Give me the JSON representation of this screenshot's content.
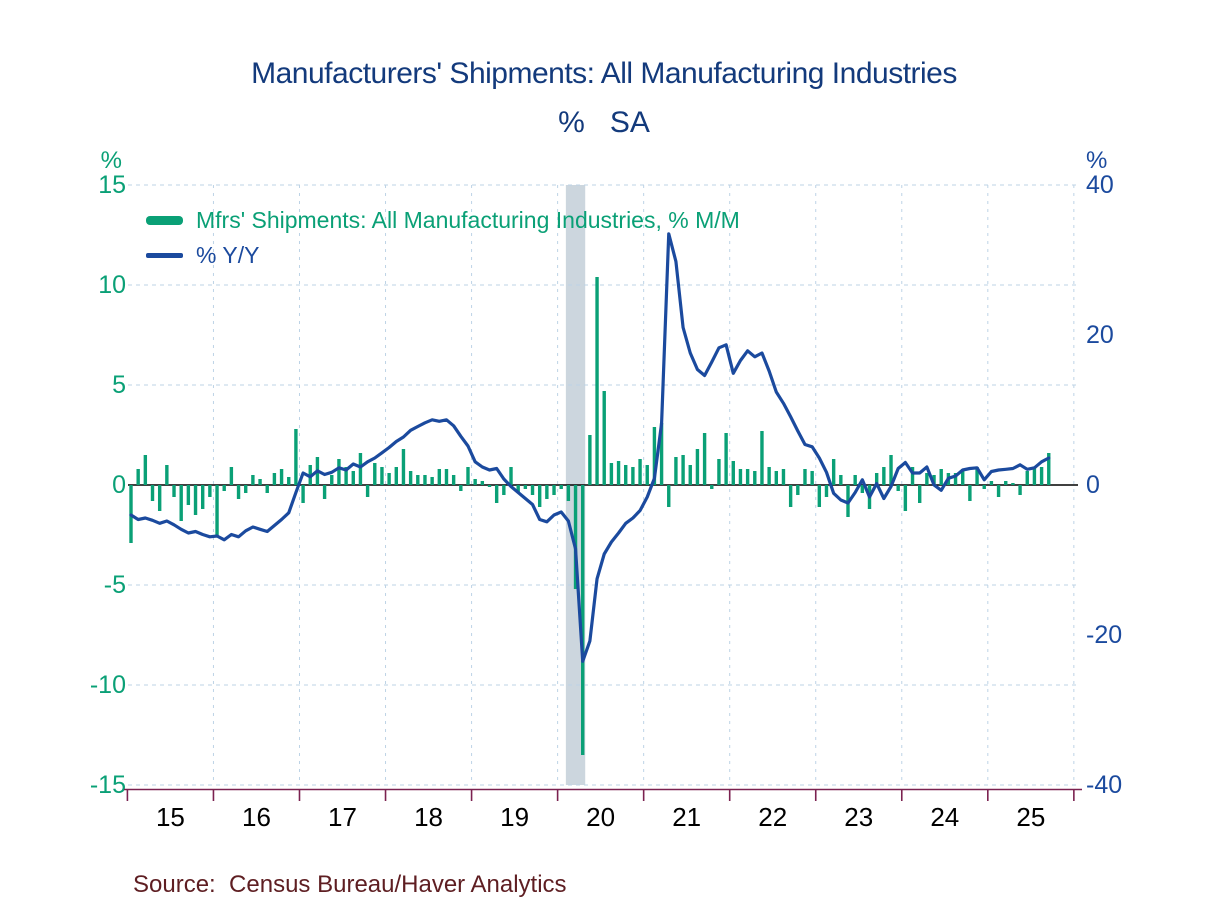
{
  "title": "Manufacturers' Shipments: All Manufacturing Industries",
  "subtitle": "%   SA",
  "source": {
    "label": "Source:",
    "text": "Census Bureau/Haver Analytics",
    "full": "Source:  Census Bureau/Haver Analytics"
  },
  "colors": {
    "bars_green": "#0aa076",
    "line_blue": "#1b4a9e",
    "title_navy": "#133a7c",
    "source_maroon": "#5e1e22",
    "x_axis_maroon": "#7b2150",
    "gridline": "#bdd3e6",
    "recession_band": "#ccd6de",
    "x_labels": "#000000",
    "zero_line": "#000000",
    "background": "#ffffff"
  },
  "legend": {
    "items": [
      {
        "label": "Mfrs' Shipments: All Manufacturing Industries, % M/M",
        "swatch": "thick-bar",
        "color": "#0aa076"
      },
      {
        "label": "% Y/Y",
        "swatch": "thin-line",
        "color": "#1b4a9e"
      }
    ]
  },
  "left_axis": {
    "unit": "%",
    "ticks": [
      15,
      10,
      5,
      0,
      -5,
      -10,
      -15
    ],
    "min": -15,
    "max": 15,
    "color": "#0aa076"
  },
  "right_axis": {
    "unit": "%",
    "ticks": [
      40,
      20,
      0,
      -20,
      -40
    ],
    "min": -40,
    "max": 40,
    "color": "#1b4a9e"
  },
  "x_axis": {
    "year_labels": [
      "15",
      "16",
      "17",
      "18",
      "19",
      "20",
      "21",
      "22",
      "23",
      "24",
      "25"
    ],
    "color": "#000000"
  },
  "recession_band": {
    "start": "2020-02",
    "end": "2020-04",
    "start_index": 61,
    "end_index": 63
  },
  "chart_data": {
    "type": "bar+line",
    "title": "Manufacturers' Shipments: All Manufacturing Industries",
    "subtitle": "%   SA",
    "start_month": "2015-01",
    "end_month": "2025-09",
    "months_per_year_tick": 12,
    "grid": "dashed horizontal at left ticks and vertical at January boundaries",
    "legend_position": "top-left inside plot",
    "series": [
      {
        "name": "Mfrs' Shipments: All Manufacturing Industries, % M/M",
        "type": "bar",
        "axis": "left",
        "axis_range": [
          -15,
          15
        ],
        "color": "#0aa076",
        "values": [
          -2.9,
          0.8,
          1.5,
          -0.8,
          -1.3,
          1.0,
          -0.6,
          -1.8,
          -1.0,
          -1.5,
          -1.2,
          -0.6,
          -2.6,
          -0.3,
          0.9,
          -0.7,
          -0.4,
          0.5,
          0.3,
          -0.4,
          0.6,
          0.8,
          0.4,
          2.8,
          -0.9,
          1.0,
          1.4,
          -0.7,
          0.5,
          1.3,
          0.9,
          0.7,
          1.6,
          -0.6,
          1.1,
          0.9,
          0.6,
          0.9,
          1.8,
          0.7,
          0.5,
          0.5,
          0.4,
          0.8,
          0.8,
          0.5,
          -0.3,
          0.9,
          0.3,
          0.2,
          -0.1,
          -0.9,
          -0.5,
          0.9,
          -0.4,
          -0.2,
          -0.5,
          -1.1,
          -0.7,
          -0.5,
          -0.2,
          -0.8,
          -5.2,
          -13.5,
          2.5,
          10.4,
          4.7,
          1.1,
          1.2,
          1.0,
          0.9,
          1.3,
          1.0,
          2.9,
          3.1,
          -1.1,
          1.4,
          1.5,
          1.0,
          1.8,
          2.6,
          -0.2,
          1.3,
          2.6,
          1.2,
          0.8,
          0.8,
          0.7,
          2.7,
          0.9,
          0.7,
          0.8,
          -1.1,
          -0.5,
          0.8,
          0.7,
          -1.1,
          -0.6,
          1.3,
          0.5,
          -1.6,
          0.5,
          -0.4,
          -1.2,
          0.6,
          0.9,
          1.5,
          -0.3,
          -1.3,
          0.9,
          -0.9,
          0.6,
          0.5,
          0.8,
          0.6,
          0.6,
          0.8,
          -0.8,
          0.9,
          -0.2,
          0.2,
          -0.6,
          0.2,
          0.1,
          -0.5,
          0.7,
          0.9,
          0.9,
          1.6
        ]
      },
      {
        "name": "% Y/Y",
        "type": "line",
        "axis": "right",
        "axis_range": [
          -40,
          40
        ],
        "color": "#1b4a9e",
        "values": [
          -4.0,
          -4.6,
          -4.4,
          -4.7,
          -5.1,
          -4.8,
          -5.3,
          -5.9,
          -6.4,
          -6.2,
          -6.6,
          -6.9,
          -6.8,
          -7.3,
          -6.6,
          -6.9,
          -6.1,
          -5.6,
          -5.9,
          -6.2,
          -5.4,
          -4.6,
          -3.7,
          -1.0,
          1.6,
          1.1,
          1.9,
          1.4,
          1.7,
          2.3,
          2.0,
          2.8,
          2.4,
          3.1,
          3.6,
          4.3,
          5.0,
          5.8,
          6.4,
          7.3,
          7.8,
          8.3,
          8.7,
          8.5,
          8.7,
          7.9,
          6.5,
          5.2,
          3.1,
          2.4,
          2.0,
          2.2,
          0.8,
          -0.2,
          -1.0,
          -1.8,
          -2.6,
          -4.6,
          -4.9,
          -4.0,
          -3.6,
          -4.8,
          -8.5,
          -23.5,
          -20.8,
          -12.5,
          -9.2,
          -7.6,
          -6.4,
          -5.1,
          -4.4,
          -3.4,
          -1.6,
          0.9,
          8.2,
          33.5,
          29.8,
          21.0,
          17.6,
          15.4,
          14.6,
          16.4,
          18.3,
          18.7,
          14.9,
          16.6,
          17.9,
          17.1,
          17.6,
          15.2,
          12.4,
          10.9,
          9.1,
          7.2,
          5.4,
          5.1,
          3.6,
          1.7,
          -1.1,
          -2.0,
          -2.4,
          -1.0,
          0.7,
          -1.6,
          0.2,
          -1.8,
          -0.2,
          2.2,
          3.0,
          1.6,
          1.6,
          2.4,
          0.0,
          -0.7,
          0.9,
          1.2,
          2.0,
          2.2,
          2.3,
          0.7,
          1.8,
          2.0,
          2.1,
          2.2,
          2.7,
          2.1,
          2.3,
          3.1,
          3.6
        ]
      }
    ]
  }
}
